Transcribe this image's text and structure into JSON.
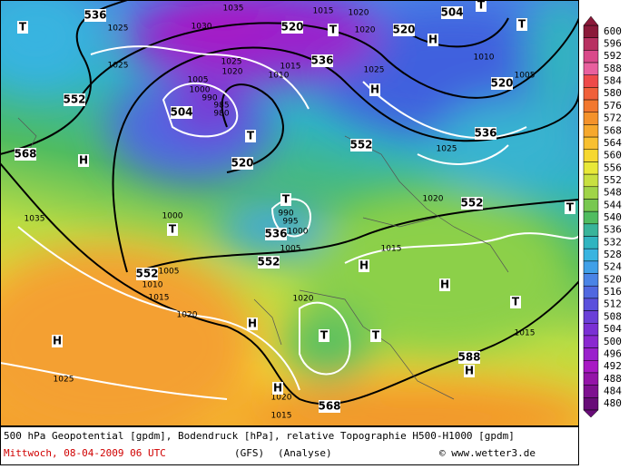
{
  "map": {
    "height_labels": [
      536,
      520,
      520,
      504,
      552,
      536,
      504,
      520,
      552,
      536,
      520,
      568,
      552,
      536,
      552,
      552,
      568,
      588
    ],
    "centers": [
      "T",
      "T",
      "H",
      "T",
      "T",
      "H",
      "T",
      "T",
      "H",
      "T",
      "H",
      "H",
      "T",
      "T",
      "H",
      "T",
      "T",
      "H",
      "H",
      "H"
    ],
    "isobar_labels": [
      1025,
      1030,
      1035,
      1015,
      1020,
      1020,
      1025,
      1025,
      1020,
      1015,
      1010,
      1025,
      1010,
      1005,
      1005,
      1000,
      990,
      985,
      980,
      1025,
      1020,
      1000,
      990,
      995,
      1000,
      1005,
      1015,
      1005,
      1010,
      1015,
      1020,
      1020,
      1015,
      1025,
      1020,
      1015,
      1035
    ]
  },
  "colorbar": {
    "levels": [
      600,
      596,
      592,
      588,
      584,
      580,
      576,
      572,
      568,
      564,
      560,
      556,
      552,
      548,
      544,
      540,
      536,
      532,
      528,
      524,
      520,
      516,
      512,
      508,
      504,
      500,
      496,
      492,
      488,
      484,
      480
    ],
    "colors": [
      "#8b1a3a",
      "#b83262",
      "#d9498a",
      "#e8609e",
      "#ee4a4a",
      "#f0603a",
      "#f2782e",
      "#f4922a",
      "#f6a82c",
      "#f8c030",
      "#f6d830",
      "#e8e838",
      "#c8e040",
      "#a0d448",
      "#78c850",
      "#50bc60",
      "#38b49a",
      "#30b4c0",
      "#38b4e0",
      "#40a0e8",
      "#4a84e6",
      "#5068e0",
      "#5a50dc",
      "#6a40d8",
      "#7a30d4",
      "#8a28d0",
      "#9a20cc",
      "#a818c4",
      "#9414a8",
      "#7e1090",
      "#680c78"
    ]
  },
  "footer": {
    "description": "500 hPa Geopotential [gpdm], Bodendruck [hPa], relative Topographie H500-H1000 [gpdm]",
    "date": "Mittwoch, 08-04-2009  06 UTC",
    "model": "(GFS)",
    "kind": "(Analyse)",
    "credit": "© www.wetter3.de"
  }
}
